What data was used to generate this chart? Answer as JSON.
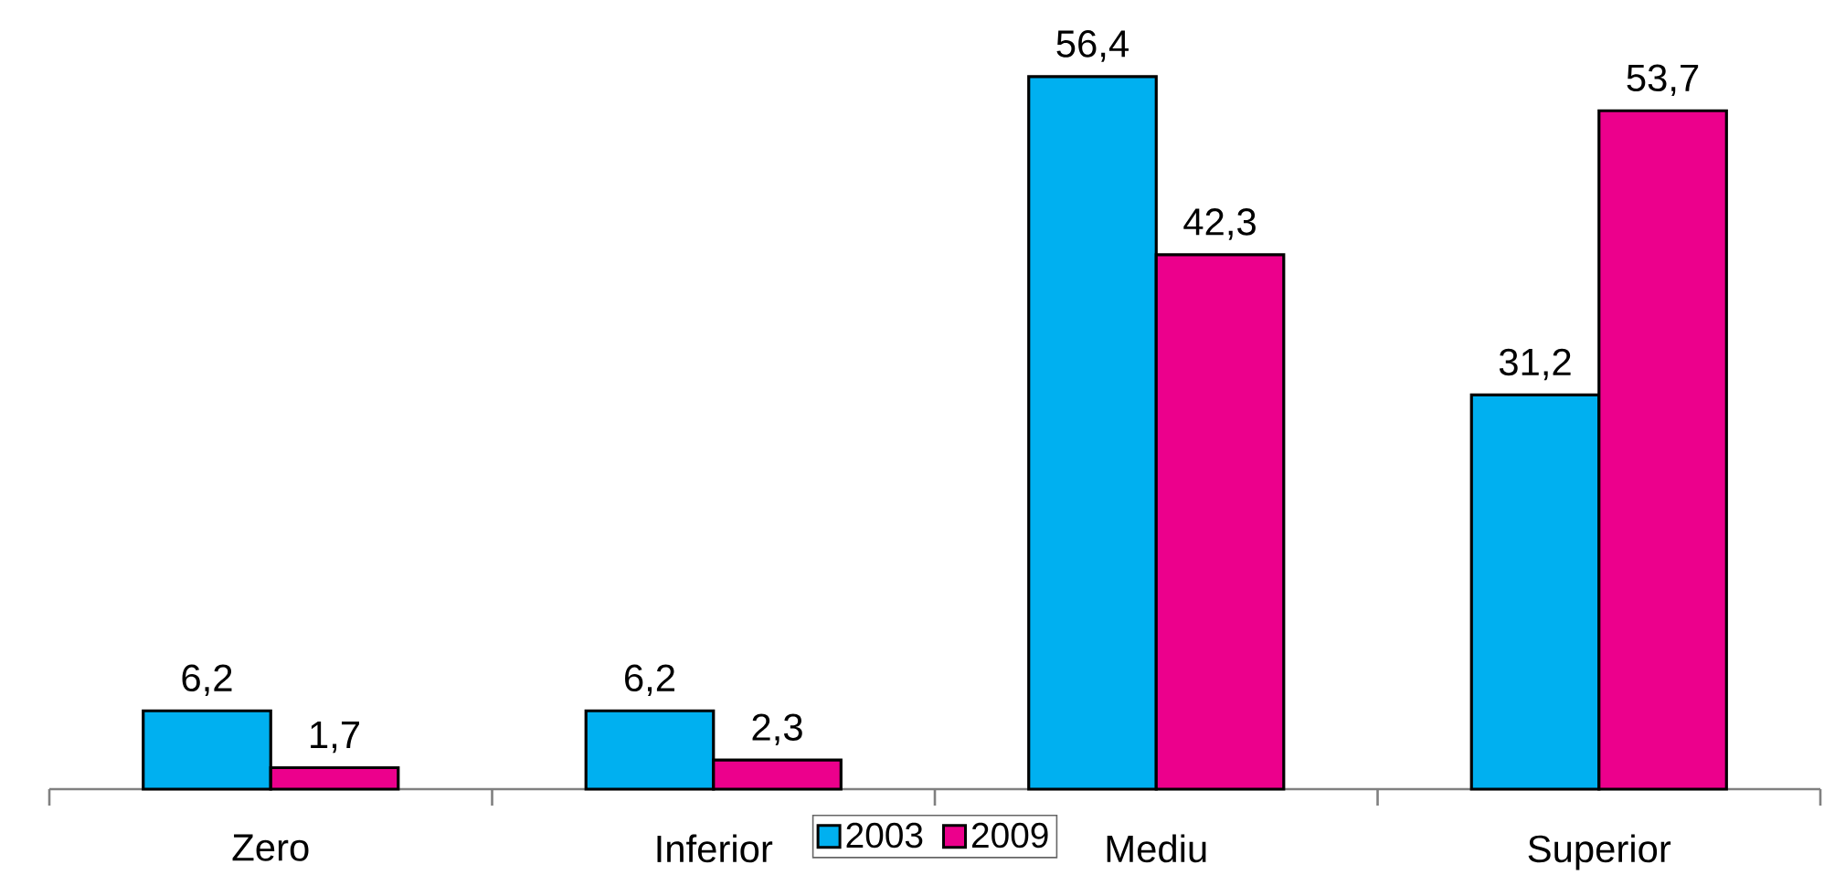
{
  "chart_data": {
    "type": "bar",
    "categories": [
      "Zero",
      "Inferior",
      "Mediu",
      "Superior"
    ],
    "series": [
      {
        "name": "2003",
        "color": "#00b0f0",
        "values": [
          6.2,
          6.2,
          56.4,
          31.2
        ],
        "value_labels": [
          "6,2",
          "6,2",
          "56,4",
          "31,2"
        ]
      },
      {
        "name": "2009",
        "color": "#ec008c",
        "values": [
          1.7,
          2.3,
          42.3,
          53.7
        ],
        "value_labels": [
          "1,7",
          "2,3",
          "42,3",
          "53,7"
        ]
      }
    ],
    "legend": "bottom"
  }
}
